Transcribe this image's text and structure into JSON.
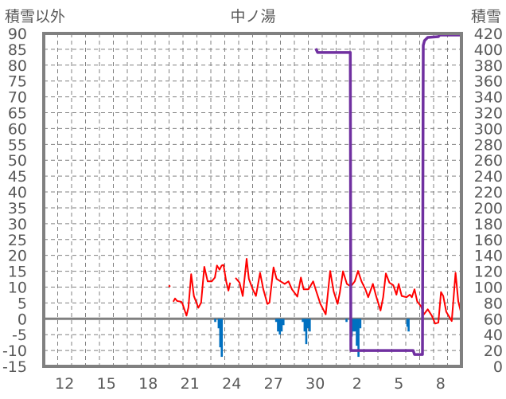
{
  "chart_data": {
    "type": "line",
    "title": "中ノ湯",
    "ylabel_left": "積雪以外",
    "ylabel_right": "積雪",
    "x_unit": "days from start of day 11 (30-day window, month of 31 days then next month)",
    "xlim": [
      0,
      30
    ],
    "ylim_left": [
      -15,
      90
    ],
    "ylim_right": [
      0,
      420
    ],
    "grid": true,
    "x_tick_labels": [
      {
        "day": 1.5,
        "label": "12"
      },
      {
        "day": 4.5,
        "label": "15"
      },
      {
        "day": 7.5,
        "label": "18"
      },
      {
        "day": 10.5,
        "label": "21"
      },
      {
        "day": 13.5,
        "label": "24"
      },
      {
        "day": 16.5,
        "label": "27"
      },
      {
        "day": 19.5,
        "label": "30"
      },
      {
        "day": 22.5,
        "label": "2"
      },
      {
        "day": 25.5,
        "label": "5"
      },
      {
        "day": 28.5,
        "label": "8"
      }
    ],
    "y_left_ticks": [
      "90",
      "85",
      "80",
      "75",
      "70",
      "65",
      "60",
      "55",
      "50",
      "45",
      "40",
      "35",
      "30",
      "25",
      "20",
      "15",
      "10",
      "5",
      "0",
      "-5",
      "-10",
      "-15"
    ],
    "y_right_ticks": [
      "420",
      "400",
      "380",
      "360",
      "340",
      "320",
      "300",
      "280",
      "260",
      "240",
      "220",
      "200",
      "180",
      "160",
      "140",
      "120",
      "100",
      "80",
      "60",
      "40",
      "20",
      "0"
    ],
    "series": [
      {
        "name": "temperature",
        "axis": "left",
        "kind": "line",
        "color": "#ff0000",
        "points": [
          [
            9.03,
            10.3
          ],
          null,
          [
            9.3,
            5.4
          ],
          [
            9.43,
            6.4
          ],
          [
            9.58,
            5.6
          ],
          [
            9.87,
            5.4
          ],
          [
            9.96,
            4.8
          ],
          [
            10.25,
            1.0
          ],
          [
            10.39,
            3.5
          ],
          [
            10.59,
            14.1
          ],
          [
            10.78,
            7.2
          ],
          [
            11.1,
            3.5
          ],
          [
            11.3,
            5.1
          ],
          [
            11.53,
            16.4
          ],
          [
            11.77,
            11.8
          ],
          [
            12.06,
            11.8
          ],
          [
            12.29,
            13.0
          ],
          [
            12.44,
            16.8
          ],
          [
            12.63,
            15.5
          ],
          [
            12.78,
            16.8
          ],
          [
            12.91,
            17.0
          ],
          [
            13.1,
            11.8
          ],
          [
            13.26,
            8.9
          ],
          [
            13.39,
            11.4
          ],
          null,
          [
            13.77,
            12.9
          ],
          [
            14.06,
            11.4
          ],
          [
            14.29,
            7.2
          ],
          [
            14.4,
            11.8
          ],
          [
            14.57,
            18.9
          ],
          [
            14.73,
            12.6
          ],
          [
            15.01,
            9.3
          ],
          [
            15.24,
            7.2
          ],
          [
            15.54,
            14.5
          ],
          [
            15.77,
            9.3
          ],
          [
            16.06,
            4.7
          ],
          [
            16.21,
            5.1
          ],
          [
            16.5,
            16.2
          ],
          [
            16.72,
            12.6
          ],
          [
            17.01,
            11.8
          ],
          [
            17.3,
            11.0
          ],
          [
            17.58,
            11.8
          ],
          [
            17.83,
            9.3
          ],
          [
            18.21,
            7.0
          ],
          [
            18.47,
            13.0
          ],
          [
            18.67,
            9.3
          ],
          [
            19.01,
            9.3
          ],
          [
            19.35,
            11.8
          ],
          [
            19.58,
            8.6
          ],
          [
            19.87,
            4.7
          ],
          [
            20.25,
            1.4
          ],
          [
            20.57,
            15.1
          ],
          [
            20.82,
            8.6
          ],
          [
            21.1,
            4.7
          ],
          [
            21.26,
            8.2
          ],
          [
            21.49,
            15.0
          ],
          [
            21.77,
            11.0
          ],
          [
            22.06,
            10.2
          ],
          [
            22.34,
            11.8
          ],
          [
            22.57,
            15.1
          ],
          [
            22.82,
            11.8
          ],
          [
            23.1,
            9.3
          ],
          [
            23.3,
            6.8
          ],
          [
            23.64,
            11.0
          ],
          [
            23.87,
            7.2
          ],
          [
            24.19,
            2.6
          ],
          [
            24.38,
            6.8
          ],
          [
            24.57,
            14.3
          ],
          [
            24.82,
            11.4
          ],
          [
            25.1,
            10.6
          ],
          [
            25.33,
            7.6
          ],
          [
            25.49,
            11.0
          ],
          [
            25.71,
            7.2
          ],
          [
            26.06,
            6.8
          ],
          [
            26.29,
            7.6
          ],
          [
            26.44,
            6.8
          ],
          [
            26.63,
            9.3
          ],
          [
            26.82,
            5.5
          ],
          [
            27.1,
            3.9
          ],
          [
            27.3,
            1.4
          ],
          [
            27.58,
            3.0
          ],
          [
            27.87,
            1.0
          ],
          [
            28.11,
            -1.5
          ],
          [
            28.34,
            -1.2
          ],
          [
            28.53,
            8.4
          ],
          [
            28.69,
            7.2
          ],
          [
            28.91,
            2.2
          ],
          [
            29.3,
            -0.7
          ],
          [
            29.58,
            14.5
          ],
          [
            29.77,
            5.5
          ],
          [
            30.0,
            1.4
          ]
        ]
      },
      {
        "name": "precipitation",
        "axis": "left",
        "kind": "bar",
        "color": "#0070c0",
        "points": [
          [
            12.31,
            -1
          ],
          [
            12.56,
            -3
          ],
          [
            12.67,
            -9
          ],
          [
            12.78,
            -12
          ],
          [
            16.69,
            -1
          ],
          [
            16.82,
            -4
          ],
          [
            16.95,
            -5
          ],
          [
            17.08,
            -4
          ],
          [
            17.21,
            -2
          ],
          [
            18.6,
            -1
          ],
          [
            18.73,
            -4
          ],
          [
            18.85,
            -8
          ],
          [
            18.98,
            -3
          ],
          [
            19.1,
            -4
          ],
          [
            21.74,
            -1
          ],
          [
            22.11,
            -5.6
          ],
          [
            22.24,
            -4
          ],
          [
            22.37,
            -4
          ],
          [
            22.48,
            -8.5
          ],
          [
            22.6,
            -12
          ],
          [
            22.73,
            -3
          ],
          [
            26.11,
            -2.5
          ],
          [
            26.2,
            -4
          ]
        ]
      },
      {
        "name": "snow_depth",
        "axis": "right",
        "kind": "line",
        "color": "#7030a0",
        "points": [
          [
            9.0,
            0
          ],
          [
            12.95,
            0
          ],
          null,
          [
            13.65,
            0
          ],
          [
            19.4,
            0
          ],
          null,
          [
            19.54,
            401
          ],
          [
            19.67,
            396
          ],
          [
            22.02,
            396
          ],
          [
            22.06,
            20
          ],
          [
            26.53,
            20
          ],
          [
            26.63,
            15
          ],
          [
            27.2,
            15
          ],
          [
            27.26,
            405
          ],
          [
            27.35,
            411
          ],
          [
            27.58,
            415
          ],
          [
            28.34,
            416
          ],
          [
            28.44,
            418
          ],
          [
            30.0,
            418
          ]
        ]
      }
    ]
  }
}
